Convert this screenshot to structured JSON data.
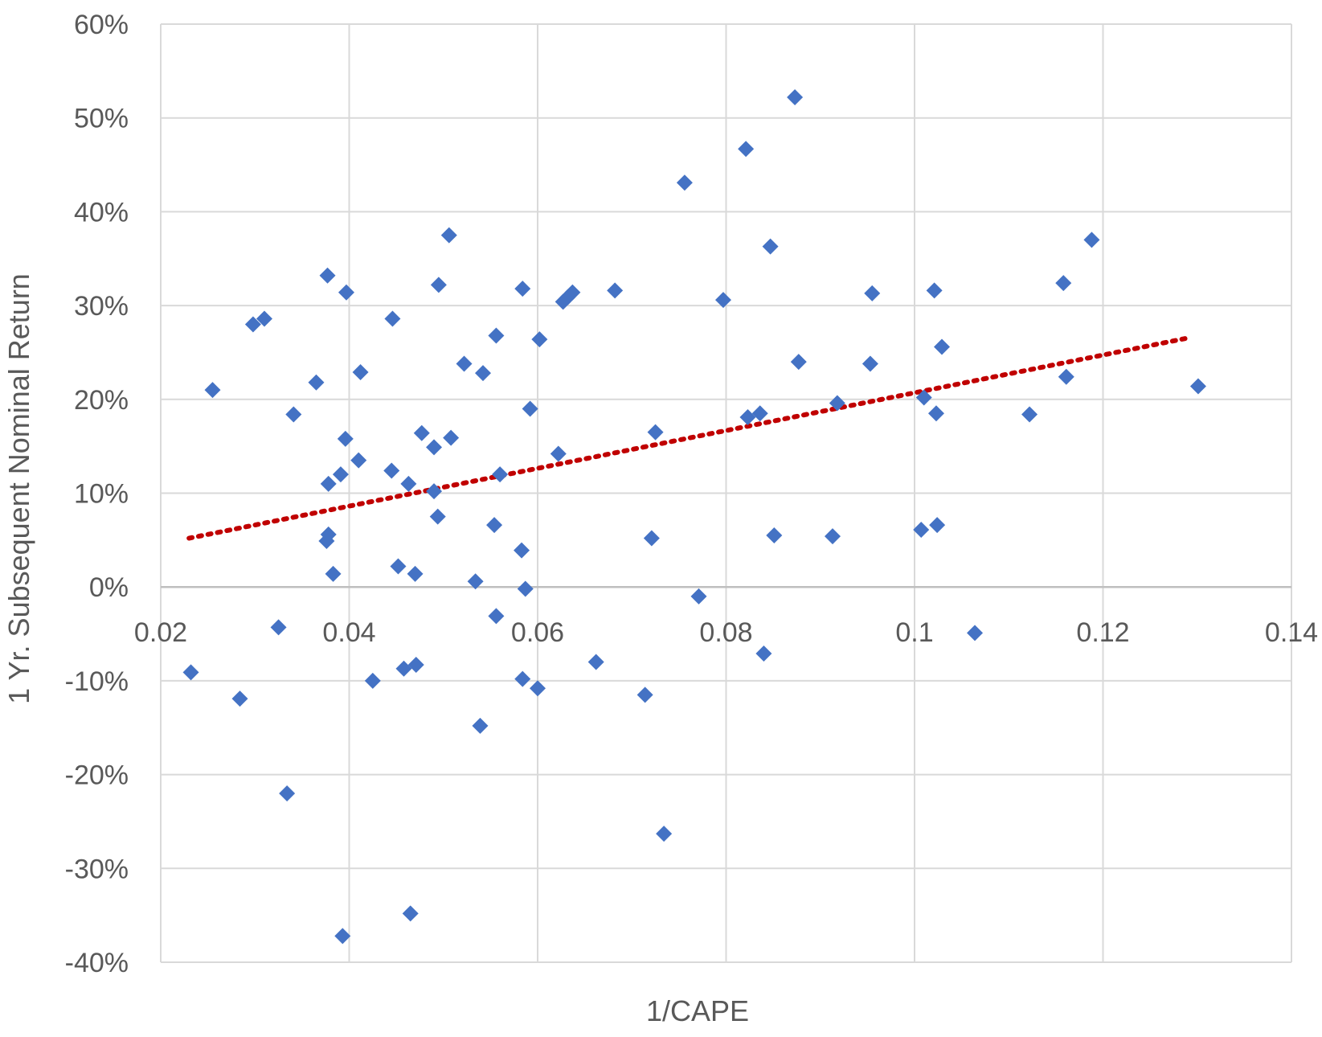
{
  "chart_data": {
    "type": "scatter",
    "title": "",
    "xlabel": "1/CAPE",
    "ylabel": "1 Yr. Subsequent Nominal Return",
    "xlim": [
      0.02,
      0.14
    ],
    "ylim": [
      -40,
      60
    ],
    "x_ticks": [
      0.02,
      0.04,
      0.06,
      0.08,
      0.1,
      0.12,
      0.14
    ],
    "x_tick_labels": [
      "0.02",
      "0.04",
      "0.06",
      "0.08",
      "0.1",
      "0.12",
      "0.14"
    ],
    "y_ticks": [
      -40,
      -30,
      -20,
      -10,
      0,
      10,
      20,
      30,
      40,
      50,
      60
    ],
    "y_tick_labels": [
      "-40%",
      "-30%",
      "-20%",
      "-10%",
      "0%",
      "10%",
      "20%",
      "30%",
      "40%",
      "50%",
      "60%"
    ],
    "grid": true,
    "legend": "none",
    "colors": {
      "points": "#4472c4",
      "trendline": "#c00000"
    },
    "trendline": {
      "style": "dotted",
      "x": [
        0.023,
        0.1293
      ],
      "y": [
        5.2,
        26.6
      ]
    },
    "points": [
      [
        0.0232,
        -9.1
      ],
      [
        0.0255,
        21.0
      ],
      [
        0.0284,
        -11.9
      ],
      [
        0.0298,
        28.0
      ],
      [
        0.031,
        28.6
      ],
      [
        0.0325,
        -4.3
      ],
      [
        0.0334,
        -22.0
      ],
      [
        0.0341,
        18.4
      ],
      [
        0.0365,
        21.8
      ],
      [
        0.0376,
        4.9
      ],
      [
        0.0378,
        5.6
      ],
      [
        0.0378,
        11.0
      ],
      [
        0.0377,
        33.2
      ],
      [
        0.0383,
        1.4
      ],
      [
        0.0391,
        12.0
      ],
      [
        0.0393,
        -37.2
      ],
      [
        0.0396,
        15.8
      ],
      [
        0.0397,
        31.4
      ],
      [
        0.041,
        13.5
      ],
      [
        0.0412,
        22.9
      ],
      [
        0.0425,
        -10.0
      ],
      [
        0.0445,
        12.4
      ],
      [
        0.0446,
        28.6
      ],
      [
        0.0452,
        2.2
      ],
      [
        0.0458,
        -8.7
      ],
      [
        0.0463,
        11.0
      ],
      [
        0.0465,
        -34.8
      ],
      [
        0.047,
        1.4
      ],
      [
        0.0471,
        -8.3
      ],
      [
        0.0477,
        16.4
      ],
      [
        0.049,
        14.9
      ],
      [
        0.049,
        10.2
      ],
      [
        0.0494,
        7.5
      ],
      [
        0.0495,
        32.2
      ],
      [
        0.0506,
        37.5
      ],
      [
        0.0508,
        15.9
      ],
      [
        0.0522,
        23.8
      ],
      [
        0.0534,
        0.6
      ],
      [
        0.0539,
        -14.8
      ],
      [
        0.0542,
        22.8
      ],
      [
        0.0554,
        6.6
      ],
      [
        0.0556,
        26.8
      ],
      [
        0.0556,
        -3.1
      ],
      [
        0.056,
        12.0
      ],
      [
        0.0583,
        3.9
      ],
      [
        0.0584,
        31.8
      ],
      [
        0.0584,
        -9.8
      ],
      [
        0.0587,
        -0.2
      ],
      [
        0.0592,
        19.0
      ],
      [
        0.06,
        -10.8
      ],
      [
        0.0602,
        26.4
      ],
      [
        0.0622,
        14.2
      ],
      [
        0.0627,
        30.4
      ],
      [
        0.0632,
        30.9
      ],
      [
        0.0637,
        31.4
      ],
      [
        0.0662,
        -8.0
      ],
      [
        0.0682,
        31.6
      ],
      [
        0.0714,
        -11.5
      ],
      [
        0.0721,
        5.2
      ],
      [
        0.0725,
        16.5
      ],
      [
        0.0734,
        -26.3
      ],
      [
        0.0756,
        43.1
      ],
      [
        0.0771,
        -1.0
      ],
      [
        0.0797,
        30.6
      ],
      [
        0.0821,
        46.7
      ],
      [
        0.0823,
        18.1
      ],
      [
        0.0836,
        18.5
      ],
      [
        0.084,
        -7.1
      ],
      [
        0.0847,
        36.3
      ],
      [
        0.0851,
        5.5
      ],
      [
        0.0873,
        52.2
      ],
      [
        0.0877,
        24.0
      ],
      [
        0.0913,
        5.4
      ],
      [
        0.0918,
        19.6
      ],
      [
        0.0953,
        23.8
      ],
      [
        0.0955,
        31.3
      ],
      [
        0.1007,
        6.1
      ],
      [
        0.101,
        20.2
      ],
      [
        0.1021,
        31.6
      ],
      [
        0.1023,
        18.5
      ],
      [
        0.1024,
        6.6
      ],
      [
        0.1029,
        25.6
      ],
      [
        0.1064,
        -4.9
      ],
      [
        0.1122,
        18.4
      ],
      [
        0.1158,
        32.4
      ],
      [
        0.1161,
        22.4
      ],
      [
        0.1188,
        37.0
      ],
      [
        0.1301,
        21.4
      ]
    ]
  }
}
